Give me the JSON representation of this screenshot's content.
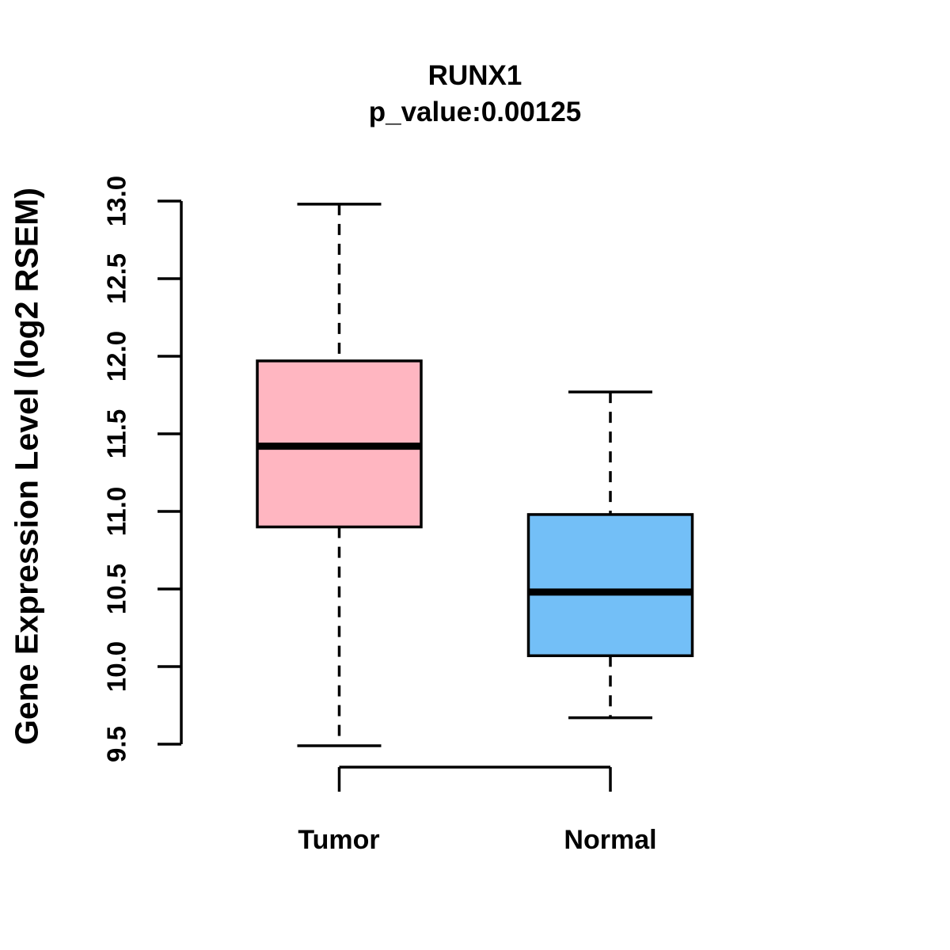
{
  "figure": {
    "title": "RUNX1",
    "subtitle": "p_value:0.00125",
    "ylabel": "Gene Expression Level (log2 RSEM)",
    "xlabels": [
      "Tumor",
      "Normal"
    ]
  },
  "chart_data": {
    "type": "boxplot",
    "title": "RUNX1",
    "subtitle": "p_value:0.00125",
    "gene": "RUNX1",
    "p_value": 0.00125,
    "ylabel": "Gene Expression Level (log2 RSEM)",
    "xlabel": "",
    "ylim": [
      9.5,
      13.0
    ],
    "yticks": [
      9.5,
      10.0,
      10.5,
      11.0,
      11.5,
      12.0,
      12.5,
      13.0
    ],
    "grid": false,
    "legend": "none",
    "categories": [
      "Tumor",
      "Normal"
    ],
    "series": [
      {
        "name": "Tumor",
        "color": "#FFB6C1",
        "whisker_low": 9.49,
        "q1": 10.9,
        "median": 11.42,
        "q3": 11.97,
        "whisker_high": 12.98
      },
      {
        "name": "Normal",
        "color": "#73BFF7",
        "whisker_low": 9.67,
        "q1": 10.07,
        "median": 10.48,
        "q3": 10.98,
        "whisker_high": 11.77
      }
    ],
    "stroke_color": "#000000",
    "background_color": "#ffffff"
  }
}
